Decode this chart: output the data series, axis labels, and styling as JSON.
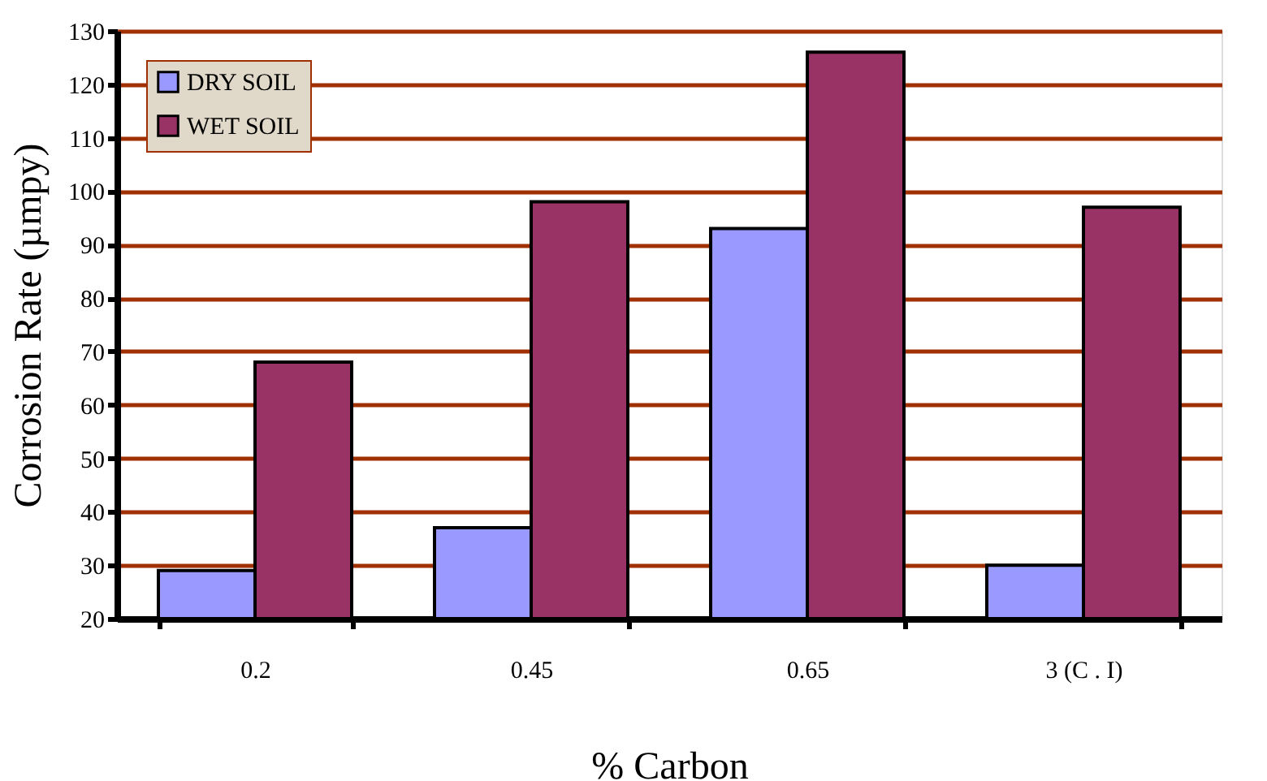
{
  "chart_data": {
    "type": "bar",
    "xlabel": "% Carbon",
    "ylabel": "Corrosion Rate  (µmpy)",
    "categories": [
      "0.2",
      "0.45",
      "0.65",
      "3  (C . I)"
    ],
    "series": [
      {
        "name": "DRY SOIL",
        "color": "#9999ff",
        "values": [
          29,
          37,
          93,
          30
        ]
      },
      {
        "name": "WET SOIL",
        "color": "#993366",
        "values": [
          68,
          98,
          126,
          97
        ]
      }
    ],
    "ylim": [
      20,
      130
    ],
    "yticks": [
      20,
      30,
      40,
      50,
      60,
      70,
      80,
      90,
      100,
      110,
      120,
      130
    ],
    "grid": "y",
    "legend": "top left"
  }
}
